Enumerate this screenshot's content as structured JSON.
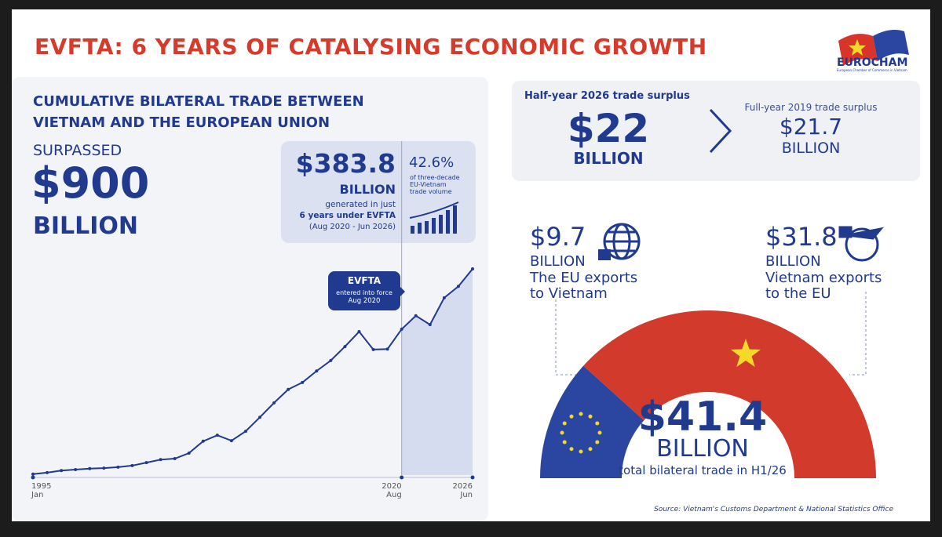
{
  "header": {
    "title": "EVFTA: 6 YEARS OF CATALYSING ECONOMIC GROWTH",
    "logo": "EUROCHAM",
    "logo_subtitle": "European Chamber of Commerce in Vietnam"
  },
  "trade_history": {
    "heading": "CUMULATIVE BILATERAL TRADE BETWEEN VIETNAM AND THE EUROPEAN UNION",
    "kicker": "SURPASSED",
    "amount": "$900",
    "unit": "BILLION"
  },
  "evfta_box": {
    "amount": "$383.8",
    "unit": "BILLION",
    "line1": "generated in just",
    "line2": "6 years under EVFTA",
    "period": "(Aug 2020 - Jun 2026)",
    "share": "42.6%",
    "share_note": "of three-decade EU-Vietnam trade volume"
  },
  "surplus": {
    "current_label": "Half-year 2026 trade surplus",
    "current_amount": "$22",
    "current_unit": "BILLION",
    "previous_label": "Full-year 2019 trade surplus",
    "previous_amount": "$21.7",
    "previous_unit": "BILLION"
  },
  "source": "Source: Vietnam's Customs Department & National Statistics Office",
  "chart_data": [
    {
      "type": "line",
      "color": "#1f3a8f",
      "categories": [
        "1995\nJan",
        null,
        null,
        null,
        null,
        null,
        null,
        null,
        null,
        null,
        null,
        null,
        null,
        null,
        null,
        null,
        null,
        null,
        null,
        null,
        null,
        null,
        null,
        null,
        null,
        null,
        "2020\nAug",
        null,
        null,
        null,
        null,
        "2026\nJun"
      ],
      "values": [
        0.2,
        0.5,
        0.9,
        1.1,
        1.3,
        1.4,
        1.6,
        1.9,
        2.5,
        3.1,
        3.3,
        4.4,
        6.8,
        8.0,
        6.9,
        8.8,
        11.6,
        14.5,
        17.2,
        18.6,
        20.9,
        23.0,
        25.8,
        28.8,
        25.2,
        25.3,
        29.3,
        32.0,
        30.2,
        35.6,
        37.9,
        41.4
      ],
      "annotation": {
        "title": "EVFTA",
        "text": "entered into force",
        "date": "Aug 2020"
      }
    },
    {
      "type": "half-donut",
      "categories": [
        "The EU exports to Vietnam",
        "Vietnam exports to the EU"
      ],
      "values": [
        9.7,
        31.8
      ],
      "value_labels": [
        "$9.7",
        "$31.8"
      ],
      "unit": "BILLION",
      "colors": [
        "#2a46a0",
        "#d23a2c"
      ],
      "total_label": "$41.4",
      "total_unit": "BILLION",
      "total_text": "total bilateral trade in H1/26"
    }
  ]
}
